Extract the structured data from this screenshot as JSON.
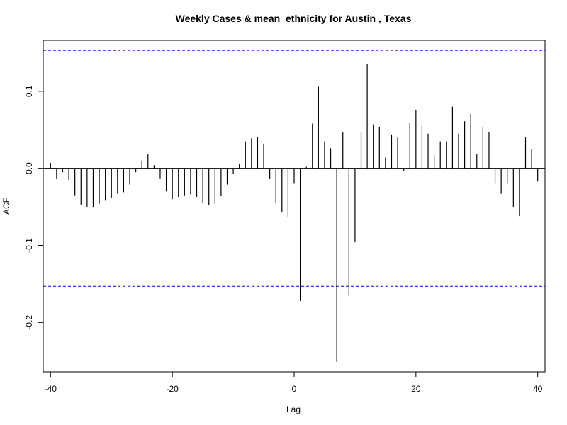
{
  "chart_data": {
    "type": "bar",
    "subtype": "acf-ccf-lollipop",
    "title": "Weekly Cases & mean_ethnicity for Austin , Texas",
    "xlabel": "Lag",
    "ylabel": "ACF",
    "xlim": [
      -41.2,
      41.2
    ],
    "ylim": [
      -0.264,
      0.166
    ],
    "x_ticks": [
      -40,
      -20,
      0,
      20,
      40
    ],
    "x_tick_labels": [
      "-40",
      "-20",
      "0",
      "20",
      "40"
    ],
    "y_ticks": [
      -0.2,
      -0.1,
      0.0,
      0.1
    ],
    "y_tick_labels": [
      "-0.2",
      "-0.1",
      "0.0",
      "0.1"
    ],
    "confidence_bound": 0.153,
    "confidence_line_color": "#0000ff",
    "zero_line": true,
    "grid": false,
    "lags": [
      -40,
      -39,
      -38,
      -37,
      -36,
      -35,
      -34,
      -33,
      -32,
      -31,
      -30,
      -29,
      -28,
      -27,
      -26,
      -25,
      -24,
      -23,
      -22,
      -21,
      -20,
      -19,
      -18,
      -17,
      -16,
      -15,
      -14,
      -13,
      -12,
      -11,
      -10,
      -9,
      -8,
      -7,
      -6,
      -5,
      -4,
      -3,
      -2,
      -1,
      0,
      1,
      2,
      3,
      4,
      5,
      6,
      7,
      8,
      9,
      10,
      11,
      12,
      13,
      14,
      15,
      16,
      17,
      18,
      19,
      20,
      21,
      22,
      23,
      24,
      25,
      26,
      27,
      28,
      29,
      30,
      31,
      32,
      33,
      34,
      35,
      36,
      37,
      38,
      39,
      40
    ],
    "values": [
      0.007,
      -0.014,
      -0.005,
      -0.015,
      -0.035,
      -0.047,
      -0.05,
      -0.05,
      -0.046,
      -0.042,
      -0.038,
      -0.033,
      -0.031,
      -0.021,
      -0.005,
      0.01,
      0.018,
      0.004,
      -0.013,
      -0.03,
      -0.04,
      -0.037,
      -0.035,
      -0.034,
      -0.037,
      -0.045,
      -0.048,
      -0.046,
      -0.036,
      -0.021,
      -0.007,
      0.006,
      0.035,
      0.039,
      0.041,
      0.032,
      -0.014,
      -0.045,
      -0.057,
      -0.063,
      -0.02,
      -0.172,
      0.002,
      0.058,
      0.106,
      0.035,
      0.026,
      -0.251,
      0.047,
      -0.165,
      -0.096,
      0.047,
      0.135,
      0.057,
      0.054,
      0.014,
      0.044,
      0.04,
      -0.003,
      0.059,
      0.076,
      0.055,
      0.045,
      0.017,
      0.035,
      0.035,
      0.08,
      0.045,
      0.061,
      0.071,
      0.018,
      0.054,
      0.047,
      -0.02,
      -0.033,
      -0.02,
      -0.05,
      -0.062,
      0.04,
      0.025,
      -0.017
    ]
  }
}
